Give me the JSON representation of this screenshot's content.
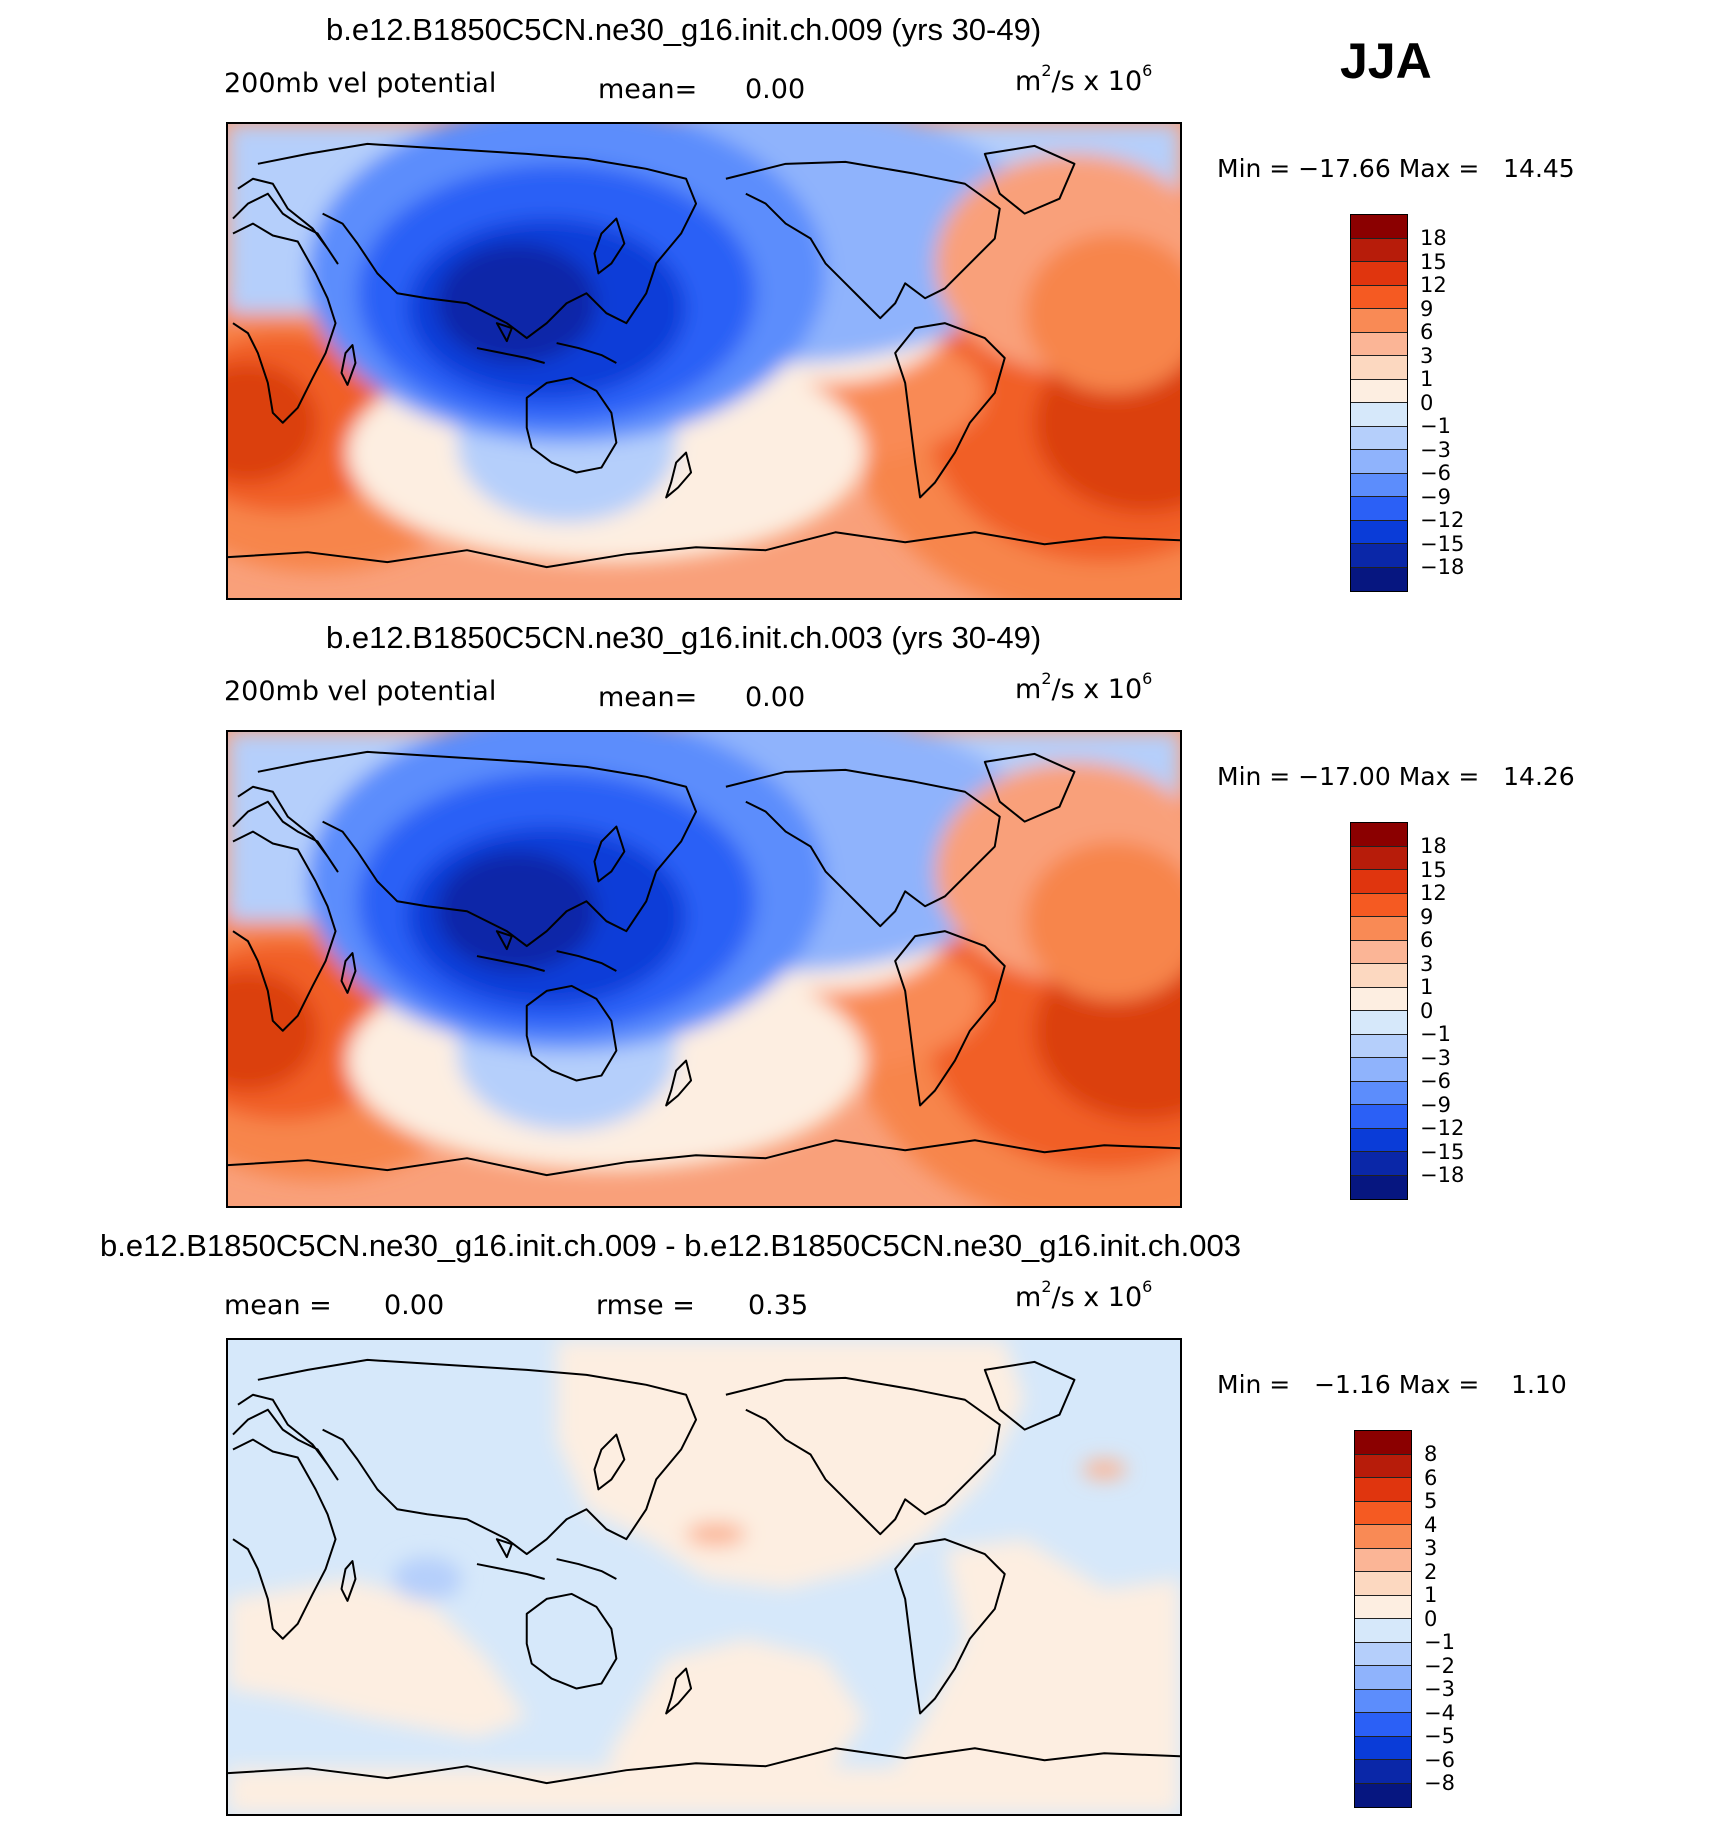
{
  "season": "JJA",
  "colors": {
    "panel_scale": [
      "#8b0000",
      "#b71c0a",
      "#e0350e",
      "#f55a22",
      "#f98a55",
      "#fbb596",
      "#fcd8c0",
      "#fdeee1",
      "#d6e8fa",
      "#b5cffb",
      "#8fb3fc",
      "#5c8dfc",
      "#2b60f6",
      "#0a3cd8",
      "#0a27a8",
      "#061680"
    ],
    "diff_scale": [
      "#8b0000",
      "#b71c0a",
      "#e0350e",
      "#f55a22",
      "#f98a55",
      "#fbb596",
      "#fcd8c0",
      "#fdeee1",
      "#d6e8fa",
      "#b5cffb",
      "#8fb3fc",
      "#5c8dfc",
      "#2b60f6",
      "#0a3cd8",
      "#0a27a8",
      "#061680"
    ]
  },
  "panels": [
    {
      "title": "b.e12.B1850C5CN.ne30_g16.init.ch.009 (yrs 30-49)",
      "variable": "200mb vel potential",
      "mean_label": "mean=",
      "mean_value": "0.00",
      "units_base": "m",
      "units_exp1": "2",
      "units_mid": "/s x 10",
      "units_exp2": "6",
      "min_label": "Min =",
      "min_value": "−17.66",
      "max_label": "Max =",
      "max_value": "14.45",
      "ticks": [
        "18",
        "15",
        "12",
        "9",
        "6",
        "3",
        "1",
        "0",
        "−1",
        "−3",
        "−6",
        "−9",
        "−12",
        "−15",
        "−18"
      ]
    },
    {
      "title": "b.e12.B1850C5CN.ne30_g16.init.ch.003 (yrs 30-49)",
      "variable": "200mb vel potential",
      "mean_label": "mean=",
      "mean_value": "0.00",
      "units_base": "m",
      "units_exp1": "2",
      "units_mid": "/s x 10",
      "units_exp2": "6",
      "min_label": "Min =",
      "min_value": "−17.00",
      "max_label": "Max =",
      "max_value": "14.26",
      "ticks": [
        "18",
        "15",
        "12",
        "9",
        "6",
        "3",
        "1",
        "0",
        "−1",
        "−3",
        "−6",
        "−9",
        "−12",
        "−15",
        "−18"
      ]
    },
    {
      "title": "b.e12.B1850C5CN.ne30_g16.init.ch.009 - b.e12.B1850C5CN.ne30_g16.init.ch.003",
      "mean_label": "mean =",
      "mean_value": "0.00",
      "rmse_label": "rmse =",
      "rmse_value": "0.35",
      "units_base": "m",
      "units_exp1": "2",
      "units_mid": "/s x 10",
      "units_exp2": "6",
      "min_label": "Min =",
      "min_value": "−1.16",
      "max_label": "Max =",
      "max_value": "1.10",
      "ticks": [
        "8",
        "6",
        "5",
        "4",
        "3",
        "2",
        "1",
        "0",
        "−1",
        "−2",
        "−3",
        "−4",
        "−5",
        "−6",
        "−8"
      ]
    }
  ]
}
